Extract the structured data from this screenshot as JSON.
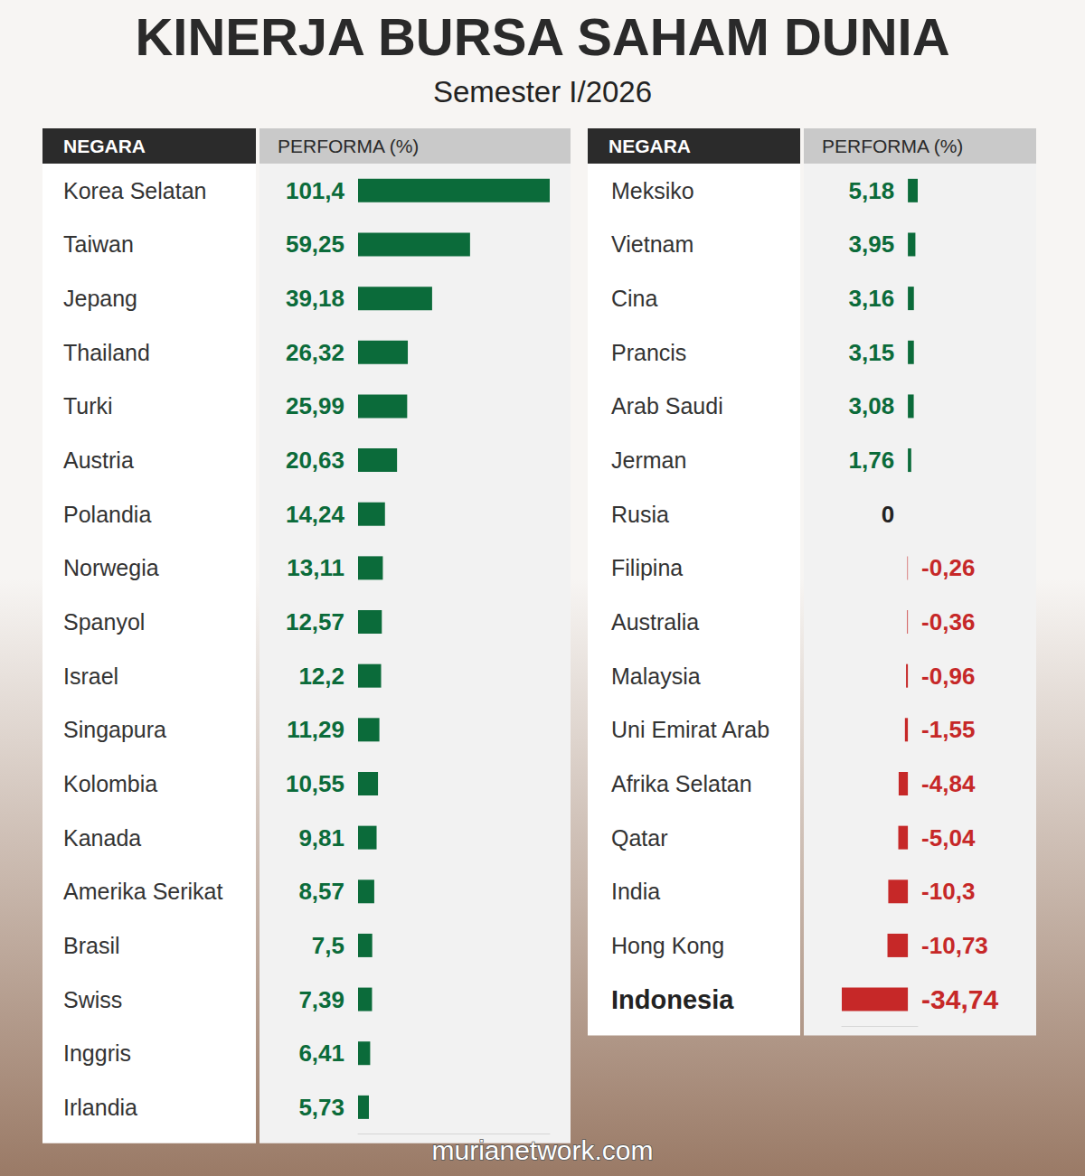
{
  "title": "KINERJA BURSA SAHAM DUNIA",
  "subtitle": "Semester I/2026",
  "annotations": [
    "murianetwork.com"
  ],
  "chart_data": [
    {
      "type": "bar",
      "orientation": "horizontal",
      "headers": [
        "NEGARA",
        "PERFORMA (%)"
      ],
      "categories": [
        "Korea Selatan",
        "Taiwan",
        "Jepang",
        "Thailand",
        "Turki",
        "Austria",
        "Polandia",
        "Norwegia",
        "Spanyol",
        "Israel",
        "Singapura",
        "Kolombia",
        "Kanada",
        "Amerika Serikat",
        "Brasil",
        "Swiss",
        "Inggris",
        "Irlandia"
      ],
      "values": [
        101.4,
        59.25,
        39.18,
        26.32,
        25.99,
        20.63,
        14.24,
        13.11,
        12.57,
        12.2,
        11.29,
        10.55,
        9.81,
        8.57,
        7.5,
        7.39,
        6.41,
        5.73
      ],
      "value_labels": [
        "101,4",
        "59,25",
        "39,18",
        "26,32",
        "25,99",
        "20,63",
        "14,24",
        "13,11",
        "12,57",
        "12,2",
        "11,29",
        "10,55",
        "9,81",
        "8,57",
        "7,5",
        "7,39",
        "6,41",
        "5,73"
      ],
      "color": "#0b6b3a",
      "xlim": [
        0,
        101.4
      ],
      "data_labels": true,
      "tick_labels": "y",
      "grid": false
    },
    {
      "type": "bar",
      "orientation": "horizontal",
      "headers": [
        "NEGARA",
        "PERFORMA (%)"
      ],
      "categories": [
        "Meksiko",
        "Vietnam",
        "Cina",
        "Prancis",
        "Arab Saudi",
        "Jerman",
        "Rusia",
        "Filipina",
        "Australia",
        "Malaysia",
        "Uni Emirat Arab",
        "Afrika Selatan",
        "Qatar",
        "India",
        "Hong Kong",
        "Indonesia"
      ],
      "values": [
        5.18,
        3.95,
        3.16,
        3.15,
        3.08,
        1.76,
        0,
        -0.26,
        -0.36,
        -0.96,
        -1.55,
        -4.84,
        -5.04,
        -10.3,
        -10.73,
        -34.74
      ],
      "value_labels": [
        "5,18",
        "3,95",
        "3,16",
        "3,15",
        "3,08",
        "1,76",
        "0",
        "-0,26",
        "-0,36",
        "-0,96",
        "-1,55",
        "-4,84",
        "-5,04",
        "-10,3",
        "-10,73",
        "-34,74"
      ],
      "colors": [
        "#0b6b3a",
        "#0b6b3a",
        "#0b6b3a",
        "#0b6b3a",
        "#0b6b3a",
        "#0b6b3a",
        "#222222",
        "#c62828",
        "#c62828",
        "#c62828",
        "#c62828",
        "#c62828",
        "#c62828",
        "#c62828",
        "#c62828",
        "#c62828"
      ],
      "xlim": [
        -34.74,
        5.18
      ],
      "data_labels": true,
      "tick_labels": "y",
      "grid": false
    }
  ]
}
